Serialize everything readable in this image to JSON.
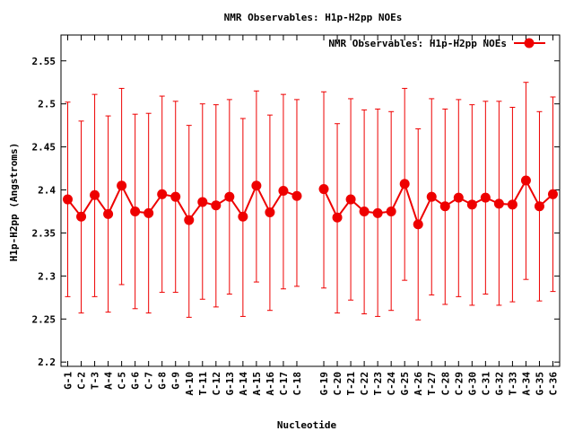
{
  "chart_data": {
    "type": "line",
    "title": "NMR Observables: H1p-H2pp NOEs",
    "xlabel": "Nucleotide",
    "ylabel": "H1p-H2pp (Angstroms)",
    "ylim": [
      2.195,
      2.58
    ],
    "yticks": [
      "2.2",
      "2.25",
      "2.3",
      "2.35",
      "2.4",
      "2.45",
      "2.5",
      "2.55"
    ],
    "grid": false,
    "legend_position": "top-right",
    "series": [
      {
        "name": "NMR Observables: H1p-H2pp NOEs",
        "color": "#ee0000",
        "segments": [
          {
            "labels": [
              "G-1",
              "C-2",
              "T-3",
              "A-4",
              "C-5",
              "G-6",
              "C-7",
              "G-8",
              "G-9",
              "A-10",
              "T-11",
              "C-12",
              "G-13",
              "A-14",
              "A-15",
              "A-16",
              "C-17",
              "C-18"
            ],
            "x": [
              1,
              2,
              3,
              4,
              5,
              6,
              7,
              8,
              9,
              10,
              11,
              12,
              13,
              14,
              15,
              16,
              17,
              18
            ],
            "y": [
              2.389,
              2.369,
              2.394,
              2.372,
              2.405,
              2.375,
              2.373,
              2.395,
              2.392,
              2.365,
              2.386,
              2.382,
              2.392,
              2.369,
              2.405,
              2.374,
              2.399,
              2.393
            ],
            "err_low": [
              2.276,
              2.257,
              2.276,
              2.258,
              2.29,
              2.262,
              2.257,
              2.281,
              2.281,
              2.252,
              2.273,
              2.264,
              2.279,
              2.253,
              2.293,
              2.26,
              2.285,
              2.288
            ],
            "err_high": [
              2.502,
              2.48,
              2.511,
              2.486,
              2.518,
              2.488,
              2.489,
              2.509,
              2.503,
              2.475,
              2.5,
              2.499,
              2.505,
              2.483,
              2.515,
              2.487,
              2.511,
              2.505
            ]
          },
          {
            "labels": [
              "G-19",
              "C-20",
              "T-21",
              "C-22",
              "T-23",
              "C-24",
              "G-25",
              "A-26",
              "T-27",
              "C-28",
              "C-29",
              "G-30",
              "C-31",
              "G-32",
              "T-33",
              "A-34",
              "G-35",
              "C-36"
            ],
            "x": [
              20,
              21,
              22,
              23,
              24,
              25,
              26,
              27,
              28,
              29,
              30,
              31,
              32,
              33,
              34,
              35,
              36,
              37
            ],
            "y": [
              2.401,
              2.368,
              2.389,
              2.375,
              2.373,
              2.375,
              2.407,
              2.36,
              2.392,
              2.381,
              2.391,
              2.383,
              2.391,
              2.384,
              2.383,
              2.411,
              2.381,
              2.395
            ],
            "err_low": [
              2.286,
              2.257,
              2.272,
              2.256,
              2.253,
              2.26,
              2.295,
              2.249,
              2.278,
              2.267,
              2.276,
              2.266,
              2.279,
              2.266,
              2.27,
              2.296,
              2.271,
              2.282
            ],
            "err_high": [
              2.514,
              2.477,
              2.506,
              2.493,
              2.494,
              2.491,
              2.518,
              2.471,
              2.506,
              2.494,
              2.505,
              2.499,
              2.503,
              2.503,
              2.496,
              2.525,
              2.491,
              2.508
            ]
          }
        ]
      }
    ]
  }
}
